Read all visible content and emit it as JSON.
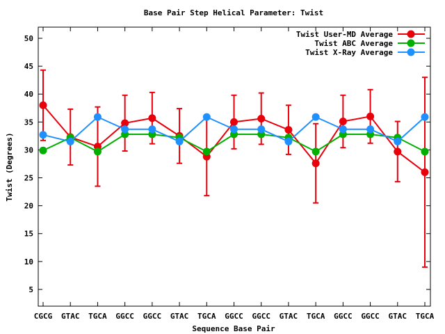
{
  "chart_data": {
    "type": "line",
    "title": "Base Pair Step Helical Parameter: Twist",
    "xlabel": "Sequence Base Pair",
    "ylabel": "Twist (Degrees)",
    "ylim": [
      2,
      52
    ],
    "yticks": [
      5,
      10,
      15,
      20,
      25,
      30,
      35,
      40,
      45,
      50
    ],
    "grid": false,
    "legend_position": "top-right",
    "categories": [
      "CGCG",
      "GTAC",
      "TGCA",
      "GGCC",
      "GGCC",
      "GTAC",
      "TGCA",
      "GGCC",
      "GGCC",
      "GTAC",
      "TGCA",
      "GGCC",
      "GGCC",
      "GTAC",
      "TGCA"
    ],
    "series": [
      {
        "name": "Twist User-MD Average",
        "color": "#e8000b",
        "values": [
          38.0,
          32.3,
          30.6,
          34.8,
          35.7,
          32.5,
          28.8,
          35.0,
          35.6,
          33.6,
          27.6,
          35.1,
          36.0,
          29.7,
          26.0
        ],
        "error": [
          6.3,
          5.0,
          7.1,
          5.0,
          4.6,
          4.9,
          7.0,
          4.8,
          4.6,
          4.4,
          7.1,
          4.7,
          4.8,
          5.4,
          17.0
        ]
      },
      {
        "name": "Twist ABC Average",
        "color": "#00b000",
        "values": [
          29.9,
          32.2,
          29.7,
          32.8,
          32.8,
          32.2,
          29.7,
          32.8,
          32.8,
          32.2,
          29.7,
          32.8,
          32.8,
          32.2,
          29.7
        ]
      },
      {
        "name": "Twist X-Ray Average",
        "color": "#1e90ff",
        "values": [
          32.7,
          31.5,
          35.9,
          33.7,
          33.7,
          31.5,
          35.9,
          33.7,
          33.7,
          31.5,
          35.9,
          33.7,
          33.7,
          31.5,
          35.9
        ]
      }
    ]
  }
}
